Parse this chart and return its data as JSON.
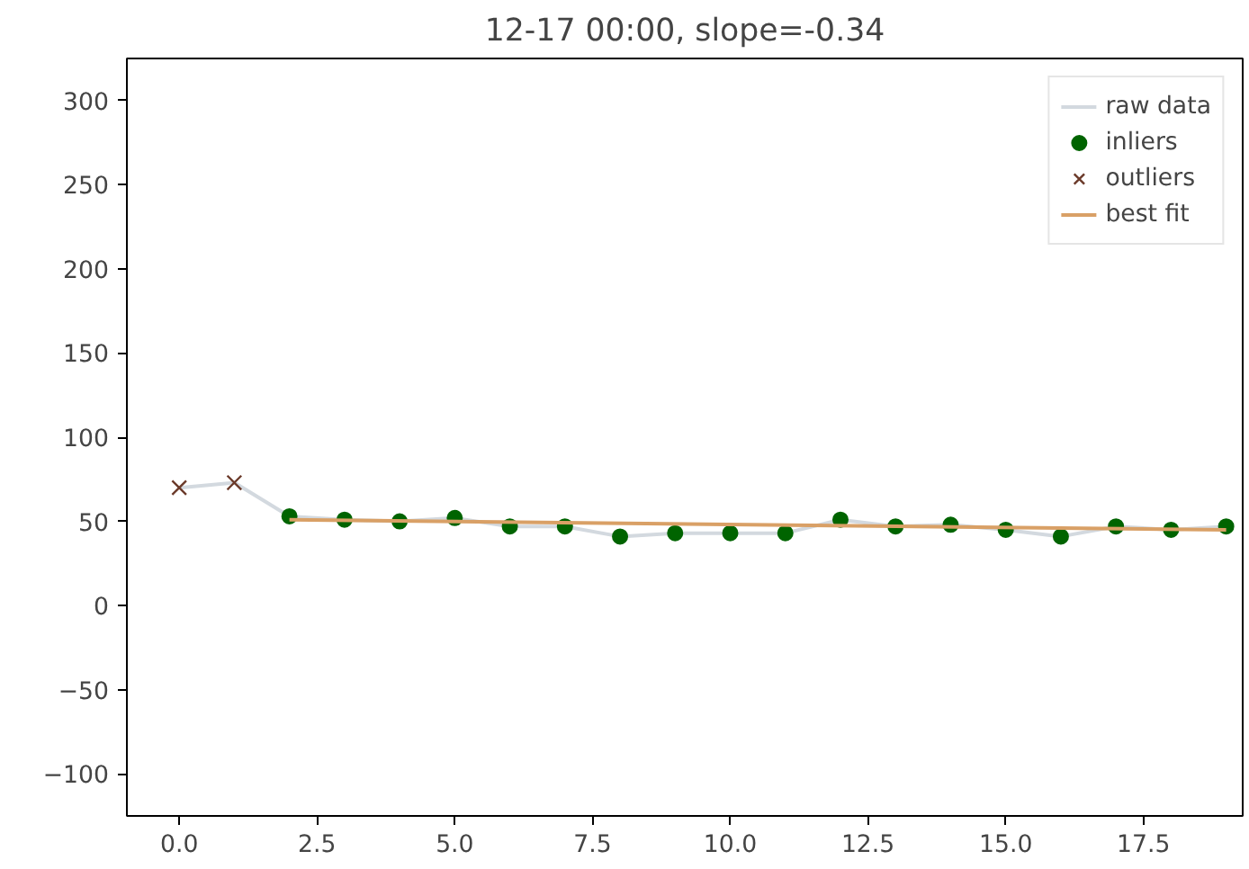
{
  "chart_data": {
    "type": "line",
    "title": "12-17 00:00, slope=-0.34",
    "xlim": [
      -0.95,
      19.3
    ],
    "ylim": [
      -125,
      325
    ],
    "xticks": [
      {
        "value": 0,
        "label": "0.0"
      },
      {
        "value": 2.5,
        "label": "2.5"
      },
      {
        "value": 5,
        "label": "5.0"
      },
      {
        "value": 7.5,
        "label": "7.5"
      },
      {
        "value": 10,
        "label": "10.0"
      },
      {
        "value": 12.5,
        "label": "12.5"
      },
      {
        "value": 15,
        "label": "15.0"
      },
      {
        "value": 17.5,
        "label": "17.5"
      }
    ],
    "yticks": [
      -100,
      -50,
      0,
      50,
      100,
      150,
      200,
      250,
      300
    ],
    "grid": false,
    "legend": "top right",
    "series": [
      {
        "name": "raw data",
        "color": "#d3d9df",
        "x": [
          0,
          1,
          2,
          3,
          4,
          5,
          6,
          7,
          8,
          9,
          10,
          11,
          12,
          13,
          14,
          15,
          16,
          17,
          18,
          19
        ],
        "values": [
          70,
          73,
          53,
          51,
          50,
          52,
          47,
          47,
          41,
          43,
          43,
          43,
          51,
          47,
          48,
          45,
          41,
          47,
          45,
          47
        ]
      },
      {
        "name": "inliers",
        "type": "scatter",
        "marker": "circle",
        "color": "#006400",
        "x": [
          2,
          3,
          4,
          5,
          6,
          7,
          8,
          9,
          10,
          11,
          12,
          13,
          14,
          15,
          16,
          17,
          18,
          19
        ],
        "values": [
          53,
          51,
          50,
          52,
          47,
          47,
          41,
          43,
          43,
          43,
          51,
          47,
          48,
          45,
          41,
          47,
          45,
          47
        ]
      },
      {
        "name": "outliers",
        "type": "scatter",
        "marker": "cross",
        "color": "#6b3a2a",
        "x": [
          0,
          1
        ],
        "values": [
          70,
          73
        ]
      },
      {
        "name": "best fit",
        "color": "#d9a066",
        "x": [
          2,
          19
        ],
        "values": [
          51,
          45
        ]
      }
    ]
  }
}
